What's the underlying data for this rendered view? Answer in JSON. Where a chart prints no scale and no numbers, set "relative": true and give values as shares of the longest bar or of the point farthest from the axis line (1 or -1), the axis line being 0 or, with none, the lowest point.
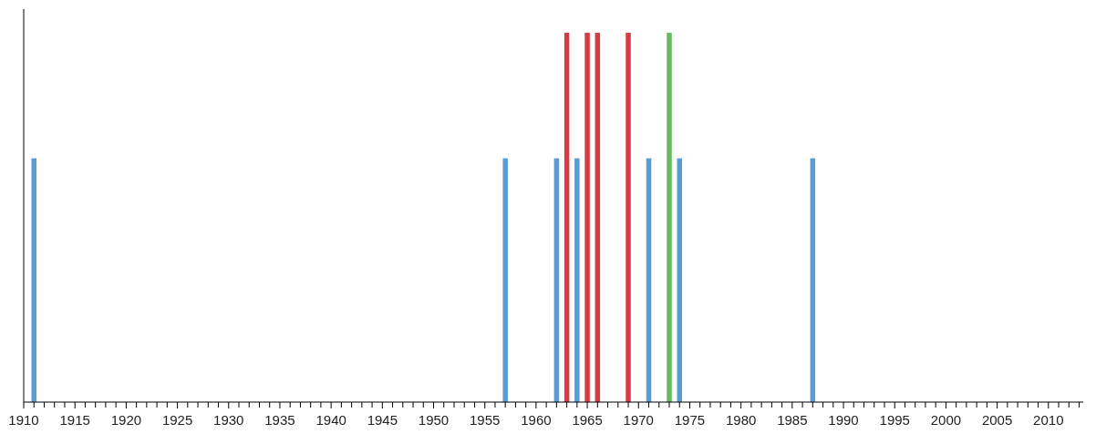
{
  "chart_data": {
    "type": "bar",
    "relative": true,
    "xlim": [
      1910,
      2013.4
    ],
    "xticks": [
      1910,
      {
        "value": 1911,
        "label": null
      },
      {
        "value": 1912,
        "label": null
      },
      {
        "value": 1913,
        "label": null
      },
      {
        "value": 1914,
        "label": null
      },
      1915,
      {
        "value": 1916,
        "label": null
      },
      {
        "value": 1917,
        "label": null
      },
      {
        "value": 1918,
        "label": null
      },
      {
        "value": 1919,
        "label": null
      },
      1920,
      {
        "value": 1921,
        "label": null
      },
      {
        "value": 1922,
        "label": null
      },
      {
        "value": 1923,
        "label": null
      },
      {
        "value": 1924,
        "label": null
      },
      1925,
      {
        "value": 1926,
        "label": null
      },
      {
        "value": 1927,
        "label": null
      },
      {
        "value": 1928,
        "label": null
      },
      {
        "value": 1929,
        "label": null
      },
      1930,
      {
        "value": 1931,
        "label": null
      },
      {
        "value": 1932,
        "label": null
      },
      {
        "value": 1933,
        "label": null
      },
      {
        "value": 1934,
        "label": null
      },
      1935,
      {
        "value": 1936,
        "label": null
      },
      {
        "value": 1937,
        "label": null
      },
      {
        "value": 1938,
        "label": null
      },
      {
        "value": 1939,
        "label": null
      },
      1940,
      {
        "value": 1941,
        "label": null
      },
      {
        "value": 1942,
        "label": null
      },
      {
        "value": 1943,
        "label": null
      },
      {
        "value": 1944,
        "label": null
      },
      1945,
      {
        "value": 1946,
        "label": null
      },
      {
        "value": 1947,
        "label": null
      },
      {
        "value": 1948,
        "label": null
      },
      {
        "value": 1949,
        "label": null
      },
      1950,
      {
        "value": 1951,
        "label": null
      },
      {
        "value": 1952,
        "label": null
      },
      {
        "value": 1953,
        "label": null
      },
      {
        "value": 1954,
        "label": null
      },
      1955,
      {
        "value": 1956,
        "label": null
      },
      {
        "value": 1957,
        "label": null
      },
      {
        "value": 1958,
        "label": null
      },
      {
        "value": 1959,
        "label": null
      },
      1960,
      {
        "value": 1961,
        "label": null
      },
      {
        "value": 1962,
        "label": null
      },
      {
        "value": 1963,
        "label": null
      },
      {
        "value": 1964,
        "label": null
      },
      1965,
      {
        "value": 1966,
        "label": null
      },
      {
        "value": 1967,
        "label": null
      },
      {
        "value": 1968,
        "label": null
      },
      {
        "value": 1969,
        "label": null
      },
      1970,
      {
        "value": 1971,
        "label": null
      },
      {
        "value": 1972,
        "label": null
      },
      {
        "value": 1973,
        "label": null
      },
      {
        "value": 1974,
        "label": null
      },
      1975,
      {
        "value": 1976,
        "label": null
      },
      {
        "value": 1977,
        "label": null
      },
      {
        "value": 1978,
        "label": null
      },
      {
        "value": 1979,
        "label": null
      },
      1980,
      {
        "value": 1981,
        "label": null
      },
      {
        "value": 1982,
        "label": null
      },
      {
        "value": 1983,
        "label": null
      },
      {
        "value": 1984,
        "label": null
      },
      1985,
      {
        "value": 1986,
        "label": null
      },
      {
        "value": 1987,
        "label": null
      },
      {
        "value": 1988,
        "label": null
      },
      {
        "value": 1989,
        "label": null
      },
      1990,
      {
        "value": 1991,
        "label": null
      },
      {
        "value": 1992,
        "label": null
      },
      {
        "value": 1993,
        "label": null
      },
      {
        "value": 1994,
        "label": null
      },
      1995,
      {
        "value": 1996,
        "label": null
      },
      {
        "value": 1997,
        "label": null
      },
      {
        "value": 1998,
        "label": null
      },
      {
        "value": 1999,
        "label": null
      },
      2000,
      {
        "value": 2001,
        "label": null
      },
      {
        "value": 2002,
        "label": null
      },
      {
        "value": 2003,
        "label": null
      },
      {
        "value": 2004,
        "label": null
      },
      2005,
      {
        "value": 2006,
        "label": null
      },
      {
        "value": 2007,
        "label": null
      },
      {
        "value": 2008,
        "label": null
      },
      {
        "value": 2009,
        "label": null
      },
      2010,
      {
        "value": 2011,
        "label": null
      },
      {
        "value": 2012,
        "label": null
      },
      {
        "value": 2013,
        "label": null
      }
    ],
    "series": [
      {
        "color": "#5b9bd5",
        "x": [
          1911,
          1957,
          1962,
          1964,
          1971,
          1974,
          1987
        ],
        "values": [
          0.66,
          0.66,
          0.66,
          0.66,
          0.66,
          0.66,
          0.66
        ]
      },
      {
        "color": "#d63a44",
        "x": [
          1963,
          1965,
          1966,
          1969
        ],
        "values": [
          1,
          1,
          1,
          1
        ]
      },
      {
        "color": "#66bb5e",
        "x": [
          1973
        ],
        "values": [
          1
        ]
      }
    ]
  }
}
